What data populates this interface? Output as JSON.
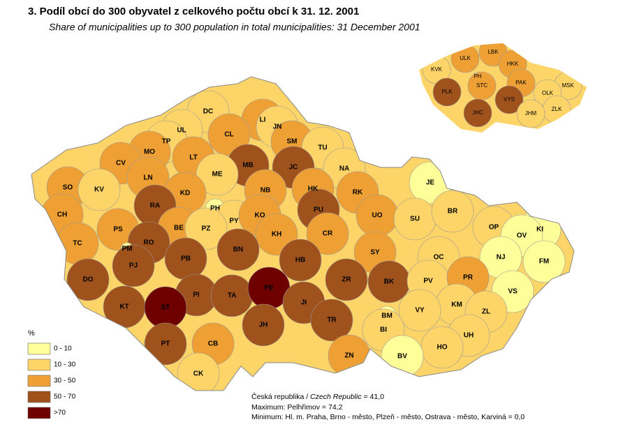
{
  "header": {
    "title": "3. Podíl obcí do 300 obyvatel z celkového počtu obcí k 31. 12. 2001",
    "subtitle": "Share of municipalities up to 300 population in total municipalities: 31 December 2001"
  },
  "legend": {
    "title": "%",
    "items": [
      {
        "label": "0 - 10",
        "color": "#ffff99"
      },
      {
        "label": "10 - 30",
        "color": "#fdd468"
      },
      {
        "label": "30 - 50",
        "color": "#eea034"
      },
      {
        "label": "50 - 70",
        "color": "#a0521d"
      },
      {
        "label": ">70",
        "color": "#6e0000"
      }
    ]
  },
  "districts": [
    {
      "label": "DC",
      "color": "#fdd468"
    },
    {
      "label": "LI",
      "color": "#eea034"
    },
    {
      "label": "JN",
      "color": "#fdd468"
    },
    {
      "label": "CL",
      "color": "#eea034"
    },
    {
      "label": "UL",
      "color": "#fdd468"
    },
    {
      "label": "TP",
      "color": "#fdd468"
    },
    {
      "label": "MO",
      "color": "#eea034"
    },
    {
      "label": "CV",
      "color": "#eea034"
    },
    {
      "label": "LT",
      "color": "#eea034"
    },
    {
      "label": "SM",
      "color": "#eea034"
    },
    {
      "label": "TU",
      "color": "#fdd468"
    },
    {
      "label": "NA",
      "color": "#fdd468"
    },
    {
      "label": "MB",
      "color": "#a0521d"
    },
    {
      "label": "JC",
      "color": "#a0521d"
    },
    {
      "label": "ME",
      "color": "#fdd468"
    },
    {
      "label": "SO",
      "color": "#eea034"
    },
    {
      "label": "KV",
      "color": "#fdd468"
    },
    {
      "label": "LN",
      "color": "#eea034"
    },
    {
      "label": "KD",
      "color": "#eea034"
    },
    {
      "label": "RA",
      "color": "#a0521d"
    },
    {
      "label": "NB",
      "color": "#eea034"
    },
    {
      "label": "HK",
      "color": "#eea034"
    },
    {
      "label": "RK",
      "color": "#eea034"
    },
    {
      "label": "PH",
      "color": "#ffff99"
    },
    {
      "label": "PY",
      "color": "#fdd468"
    },
    {
      "label": "KO",
      "color": "#eea034"
    },
    {
      "label": "PU",
      "color": "#a0521d"
    },
    {
      "label": "CH",
      "color": "#eea034"
    },
    {
      "label": "PS",
      "color": "#eea034"
    },
    {
      "label": "BE",
      "color": "#eea034"
    },
    {
      "label": "PZ",
      "color": "#fdd468"
    },
    {
      "label": "KH",
      "color": "#eea034"
    },
    {
      "label": "CR",
      "color": "#eea034"
    },
    {
      "label": "UO",
      "color": "#eea034"
    },
    {
      "label": "TC",
      "color": "#eea034"
    },
    {
      "label": "RO",
      "color": "#a0521d"
    },
    {
      "label": "PM",
      "color": "#ffff99"
    },
    {
      "label": "BN",
      "color": "#a0521d"
    },
    {
      "label": "SY",
      "color": "#eea034"
    },
    {
      "label": "PJ",
      "color": "#a0521d"
    },
    {
      "label": "PB",
      "color": "#a0521d"
    },
    {
      "label": "HB",
      "color": "#a0521d"
    },
    {
      "label": "DO",
      "color": "#a0521d"
    },
    {
      "label": "PI",
      "color": "#a0521d"
    },
    {
      "label": "TA",
      "color": "#a0521d"
    },
    {
      "label": "PE",
      "color": "#6e0000"
    },
    {
      "label": "ZR",
      "color": "#a0521d"
    },
    {
      "label": "BK",
      "color": "#a0521d"
    },
    {
      "label": "KT",
      "color": "#a0521d"
    },
    {
      "label": "ST",
      "color": "#6e0000"
    },
    {
      "label": "JI",
      "color": "#a0521d"
    },
    {
      "label": "JH",
      "color": "#a0521d"
    },
    {
      "label": "TR",
      "color": "#a0521d"
    },
    {
      "label": "PT",
      "color": "#a0521d"
    },
    {
      "label": "CB",
      "color": "#eea034"
    },
    {
      "label": "ZN",
      "color": "#eea034"
    },
    {
      "label": "CK",
      "color": "#fdd468"
    },
    {
      "label": "JE",
      "color": "#ffff99"
    },
    {
      "label": "SU",
      "color": "#fdd468"
    },
    {
      "label": "BR",
      "color": "#fdd468"
    },
    {
      "label": "OP",
      "color": "#fdd468"
    },
    {
      "label": "KI",
      "color": "#ffff99"
    },
    {
      "label": "OV",
      "color": "#ffff99"
    },
    {
      "label": "NJ",
      "color": "#ffff99"
    },
    {
      "label": "FM",
      "color": "#ffff99"
    },
    {
      "label": "OC",
      "color": "#fdd468"
    },
    {
      "label": "PV",
      "color": "#fdd468"
    },
    {
      "label": "PR",
      "color": "#eea034"
    },
    {
      "label": "VS",
      "color": "#ffff99"
    },
    {
      "label": "KM",
      "color": "#fdd468"
    },
    {
      "label": "BM",
      "color": "#ffff99"
    },
    {
      "label": "VY",
      "color": "#fdd468"
    },
    {
      "label": "ZL",
      "color": "#fdd468"
    },
    {
      "label": "BI",
      "color": "#fdd468"
    },
    {
      "label": "UH",
      "color": "#fdd468"
    },
    {
      "label": "HO",
      "color": "#fdd468"
    },
    {
      "label": "BV",
      "color": "#ffff99"
    }
  ],
  "regions": [
    {
      "label": "KVK",
      "color": "#fdd468"
    },
    {
      "label": "ULK",
      "color": "#eea034"
    },
    {
      "label": "LBK",
      "color": "#eea034"
    },
    {
      "label": "HKK",
      "color": "#eea034"
    },
    {
      "label": "PH",
      "color": "#ffff99"
    },
    {
      "label": "STC",
      "color": "#eea034"
    },
    {
      "label": "PAK",
      "color": "#eea034"
    },
    {
      "label": "MSK",
      "color": "#fdd468"
    },
    {
      "label": "OLK",
      "color": "#fdd468"
    },
    {
      "label": "PLK",
      "color": "#a0521d"
    },
    {
      "label": "VYS",
      "color": "#a0521d"
    },
    {
      "label": "ZLK",
      "color": "#fdd468"
    },
    {
      "label": "JHC",
      "color": "#a0521d"
    },
    {
      "label": "JHM",
      "color": "#fdd468"
    }
  ],
  "notes": {
    "line1": {
      "text": "Česká republika / ",
      "italic": "Czech Republic",
      "value": " = 41,0"
    },
    "line2": "Maximum: Pelhřimov  = 74,2",
    "line3": "Minimum: Hl. m. Praha, Brno - město, Plzeň - město, Ostrava - město, Karviná = 0,0"
  }
}
